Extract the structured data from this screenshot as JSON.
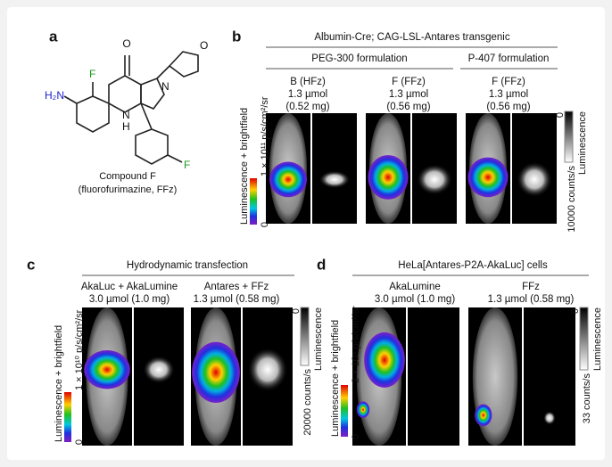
{
  "panel_a": {
    "label": "a",
    "atoms": [
      "O",
      "N",
      "H₂N",
      "F",
      "N",
      "H",
      "F",
      "O"
    ],
    "caption": [
      "Compound F",
      "(fluorofurimazine, FFz)"
    ]
  },
  "panel_b": {
    "label": "b",
    "title": "Albumin-Cre; CAG-LSL-Antares transgenic",
    "groups": [
      "PEG-300 formulation",
      "P-407 formulation"
    ],
    "columns": [
      [
        "B (HFz)",
        "1.3 µmol",
        "(0.52 mg)"
      ],
      [
        "F (FFz)",
        "1.3 µmol",
        "(0.56 mg)"
      ],
      [
        "F (FFz)",
        "1.3 µmol",
        "(0.56 mg)"
      ]
    ],
    "left_scale": {
      "axis_label": "Luminescence + brightfield",
      "max": "1 × 10¹¹ p/s/cm²/sr",
      "min": "0"
    },
    "right_scale": {
      "min": "0",
      "axis_label": "Luminescence",
      "max": "10000 counts/s"
    }
  },
  "panel_c": {
    "label": "c",
    "title": "Hydrodynamic transfection",
    "columns": [
      [
        "AkaLuc + AkaLumine",
        "3.0 µmol (1.0 mg)"
      ],
      [
        "Antares + FFz",
        "1.3 µmol (0.58 mg)"
      ]
    ],
    "left_scale": {
      "axis_label": "Luminescence + brightfield",
      "max": "1 × 10¹⁰ p/s/cm²/sr",
      "min": "0"
    },
    "right_scale": {
      "min": "0",
      "axis_label": "Luminescence",
      "max": "20000 counts/s"
    }
  },
  "panel_d": {
    "label": "d",
    "title": "HeLa[Antares-P2A-AkaLuc] cells",
    "columns": [
      [
        "AkaLumine",
        "3.0 µmol (1.0 mg)"
      ],
      [
        "FFz",
        "1.3 µmol (0.58 mg)"
      ]
    ],
    "left_scale": {
      "axis_label": "Luminescence + brightfield",
      "max": "3 × 10⁶ p/s/cm²/sr",
      "min": "0"
    },
    "right_scale": {
      "min": "0",
      "axis_label": "Luminescence",
      "max": "33 counts/s"
    }
  }
}
